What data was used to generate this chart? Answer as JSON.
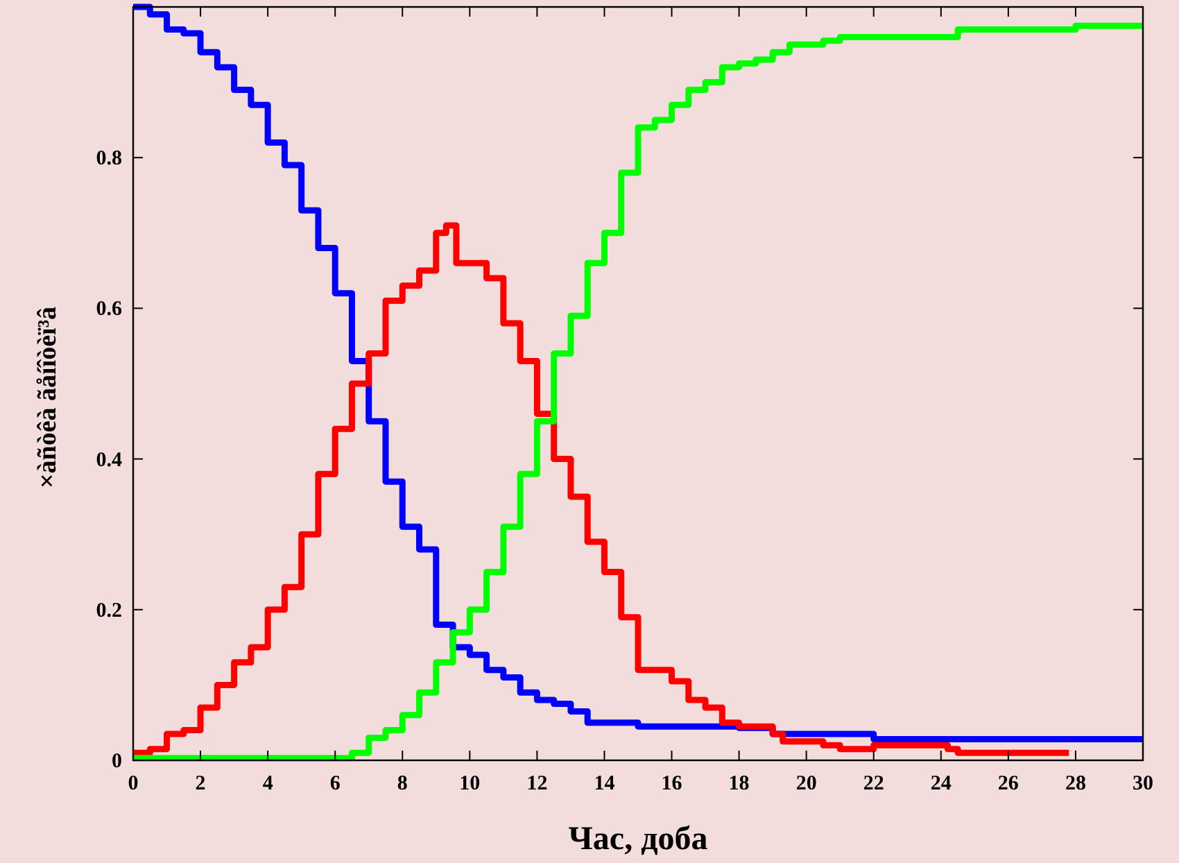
{
  "chart_data": {
    "type": "step",
    "xlabel": "Час, доба",
    "ylabel": "×àñòêà ãåíîòèï³â",
    "xlim": [
      0,
      30
    ],
    "ylim": [
      0,
      1
    ],
    "xticks": [
      0,
      2,
      4,
      6,
      8,
      10,
      12,
      14,
      16,
      18,
      20,
      22,
      24,
      26,
      28,
      30
    ],
    "yticks": [
      0,
      0.2,
      0.4,
      0.6,
      0.8
    ],
    "grid": false,
    "line_style": "solid",
    "marker": "none",
    "series": [
      {
        "color": "#0000ff",
        "x": [
          0,
          0.5,
          1,
          1.5,
          2,
          2.5,
          3,
          3.5,
          4,
          4.5,
          5,
          5.5,
          6,
          6.5,
          7,
          7.5,
          8,
          8.5,
          9,
          9.5,
          10,
          10.5,
          11,
          11.5,
          12,
          12.5,
          13,
          13.5,
          14,
          15,
          18,
          19,
          21.8,
          22,
          30
        ],
        "values": [
          1.0,
          0.99,
          0.97,
          0.965,
          0.94,
          0.92,
          0.89,
          0.87,
          0.82,
          0.79,
          0.73,
          0.68,
          0.62,
          0.53,
          0.45,
          0.37,
          0.31,
          0.28,
          0.18,
          0.15,
          0.14,
          0.12,
          0.11,
          0.09,
          0.08,
          0.075,
          0.065,
          0.05,
          0.05,
          0.045,
          0.043,
          0.035,
          0.035,
          0.028,
          0.028
        ]
      },
      {
        "color": "#ff0000",
        "x": [
          0,
          0.5,
          1,
          1.5,
          2,
          2.5,
          3,
          3.5,
          4,
          4.5,
          5,
          5.5,
          6,
          6.5,
          7,
          7.5,
          8,
          8.5,
          9,
          9.3,
          9.6,
          10,
          10.5,
          11,
          11.5,
          12,
          12.5,
          13,
          13.5,
          14,
          14.5,
          15,
          16,
          16.5,
          17,
          17.5,
          18,
          18.5,
          19,
          19.3,
          20.5,
          21,
          22,
          24.2,
          24.5,
          27.8
        ],
        "values": [
          0.01,
          0.015,
          0.035,
          0.04,
          0.07,
          0.1,
          0.13,
          0.15,
          0.2,
          0.23,
          0.3,
          0.38,
          0.44,
          0.5,
          0.54,
          0.61,
          0.63,
          0.65,
          0.7,
          0.71,
          0.66,
          0.66,
          0.64,
          0.58,
          0.53,
          0.46,
          0.4,
          0.35,
          0.29,
          0.25,
          0.19,
          0.12,
          0.105,
          0.08,
          0.07,
          0.05,
          0.045,
          0.045,
          0.035,
          0.025,
          0.02,
          0.015,
          0.02,
          0.015,
          0.01,
          0.01
        ]
      },
      {
        "color": "#00ff00",
        "x": [
          0,
          6,
          6.5,
          7,
          7.5,
          8,
          8.5,
          9,
          9.5,
          10,
          10.5,
          11,
          11.5,
          12,
          12.5,
          13,
          13.5,
          14,
          14.5,
          15,
          15.5,
          16,
          16.5,
          17,
          17.5,
          18,
          18.5,
          19,
          19.5,
          20.5,
          21,
          24,
          24.5,
          27.8,
          28,
          30
        ],
        "values": [
          0.003,
          0.003,
          0.01,
          0.03,
          0.04,
          0.06,
          0.09,
          0.13,
          0.17,
          0.2,
          0.25,
          0.31,
          0.38,
          0.45,
          0.54,
          0.59,
          0.66,
          0.7,
          0.78,
          0.84,
          0.85,
          0.87,
          0.89,
          0.9,
          0.92,
          0.925,
          0.93,
          0.94,
          0.95,
          0.955,
          0.96,
          0.96,
          0.97,
          0.97,
          0.975,
          0.975
        ]
      }
    ]
  }
}
